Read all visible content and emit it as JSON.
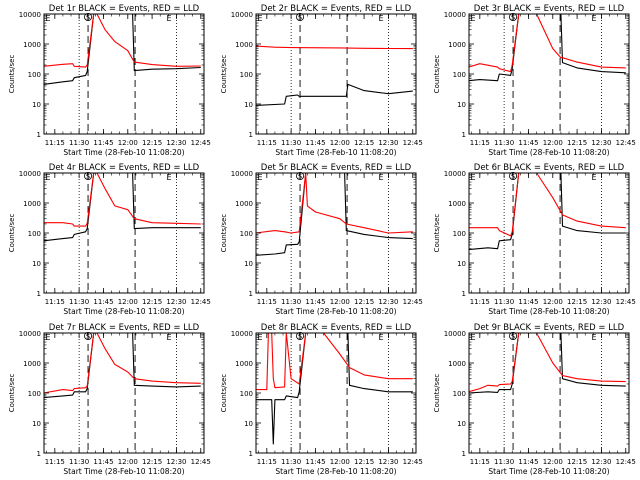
{
  "colors": {
    "events": "#000000",
    "lld": "#ff0000",
    "background": "#ffffff",
    "axes": "#000000"
  },
  "chart_data": [
    {
      "type": "line",
      "title": "Det 1r BLACK = Events, RED = LLD",
      "xlabel": "Start Time (28-Feb-10 11:08:20)",
      "ylabel": "Counts/sec",
      "xticks": [
        "11:15",
        "11:30",
        "11:45",
        "12:00",
        "12:15",
        "12:30",
        "12:45"
      ],
      "yticks": [
        "1",
        "10",
        "100",
        "1000",
        "10000"
      ],
      "ylim": [
        1,
        10000
      ],
      "yscale": "log",
      "xlim": [
        "11:08:20",
        "12:47:00"
      ],
      "markers": [
        "S",
        "E"
      ],
      "grid": false,
      "series": [
        {
          "name": "Events",
          "color": "#000000",
          "x": [
            "11:08",
            "11:20",
            "11:26",
            "11:27",
            "11:34",
            "11:35",
            "11:39",
            "11:40",
            "11:41",
            "11:50",
            "12:03",
            "12:04",
            "12:15",
            "12:30",
            "12:45"
          ],
          "y": [
            45,
            55,
            60,
            75,
            90,
            120,
            10000,
            10000,
            10000,
            10000,
            10000,
            130,
            145,
            150,
            165
          ]
        },
        {
          "name": "LLD",
          "color": "#ff0000",
          "x": [
            "11:08",
            "11:20",
            "11:26",
            "11:27",
            "11:34",
            "11:35",
            "11:39",
            "11:40",
            "11:41",
            "11:46",
            "11:52",
            "12:00",
            "12:04",
            "12:15",
            "12:30",
            "12:45"
          ],
          "y": [
            180,
            210,
            220,
            180,
            170,
            200,
            10000,
            10000,
            10000,
            3000,
            1200,
            600,
            250,
            205,
            180,
            185
          ]
        }
      ]
    },
    {
      "type": "line",
      "title": "Det 2r BLACK = Events, RED = LLD",
      "xlabel": "Start Time (28-Feb-10 11:08:20)",
      "ylabel": "Counts/sec",
      "xticks": [
        "11:15",
        "11:30",
        "11:45",
        "12:00",
        "12:15",
        "12:30",
        "12:45"
      ],
      "yticks": [
        "1",
        "10",
        "100",
        "1000",
        "10000"
      ],
      "ylim": [
        1,
        10000
      ],
      "yscale": "log",
      "xlim": [
        "11:08:20",
        "12:47:00"
      ],
      "markers": [
        "S",
        "E"
      ],
      "grid": false,
      "series": [
        {
          "name": "Events",
          "color": "#000000",
          "x": [
            "11:08",
            "11:26",
            "11:27",
            "11:34",
            "11:35",
            "11:39",
            "12:04",
            "12:05",
            "12:15",
            "12:30",
            "12:45"
          ],
          "y": [
            9,
            10,
            18,
            20,
            18,
            18,
            18,
            45,
            28,
            22,
            27
          ]
        },
        {
          "name": "LLD",
          "color": "#ff0000",
          "x": [
            "11:08",
            "11:20",
            "11:30",
            "11:40",
            "12:00",
            "12:15",
            "12:30",
            "12:45"
          ],
          "y": [
            850,
            780,
            760,
            750,
            740,
            720,
            710,
            700
          ]
        }
      ]
    },
    {
      "type": "line",
      "title": "Det 3r BLACK = Events, RED = LLD",
      "xlabel": "Start Time (28-Feb-10 11:08:20)",
      "ylabel": "Counts/sec",
      "xticks": [
        "11:15",
        "11:30",
        "11:45",
        "12:00",
        "12:15",
        "12:30",
        "12:45"
      ],
      "yticks": [
        "1",
        "10",
        "100",
        "1000",
        "10000"
      ],
      "ylim": [
        1,
        10000
      ],
      "yscale": "log",
      "xlim": [
        "11:08:20",
        "12:47:00"
      ],
      "markers": [
        "S",
        "E"
      ],
      "grid": false,
      "series": [
        {
          "name": "Events",
          "color": "#000000",
          "x": [
            "11:08",
            "11:15",
            "11:26",
            "11:27",
            "11:34",
            "11:35",
            "11:39",
            "11:40",
            "11:41",
            "11:50",
            "12:05",
            "12:06",
            "12:15",
            "12:30",
            "12:45"
          ],
          "y": [
            60,
            65,
            60,
            100,
            90,
            150,
            10000,
            10000,
            10000,
            10000,
            10000,
            240,
            160,
            120,
            110
          ]
        },
        {
          "name": "LLD",
          "color": "#ff0000",
          "x": [
            "11:08",
            "11:15",
            "11:26",
            "11:27",
            "11:34",
            "11:35",
            "11:39",
            "11:40",
            "11:41",
            "11:50",
            "12:00",
            "12:05",
            "12:06",
            "12:15",
            "12:30",
            "12:45"
          ],
          "y": [
            170,
            220,
            170,
            150,
            120,
            200,
            10000,
            10000,
            10000,
            10000,
            700,
            350,
            350,
            250,
            170,
            160
          ]
        }
      ]
    },
    {
      "type": "line",
      "title": "Det 4r BLACK = Events, RED = LLD",
      "xlabel": "Start Time (28-Feb-10 11:08:20)",
      "ylabel": "Counts/sec",
      "xticks": [
        "11:15",
        "11:30",
        "11:45",
        "12:00",
        "12:15",
        "12:30",
        "12:45"
      ],
      "yticks": [
        "1",
        "10",
        "100",
        "1000",
        "10000"
      ],
      "ylim": [
        1,
        10000
      ],
      "yscale": "log",
      "xlim": [
        "11:08:20",
        "12:47:00"
      ],
      "markers": [
        "S",
        "E"
      ],
      "grid": false,
      "series": [
        {
          "name": "Events",
          "color": "#000000",
          "x": [
            "11:08",
            "11:20",
            "11:26",
            "11:27",
            "11:34",
            "11:35",
            "11:39",
            "11:40",
            "11:41",
            "11:50",
            "12:03",
            "12:04",
            "12:15",
            "12:30",
            "12:45"
          ],
          "y": [
            55,
            65,
            70,
            90,
            110,
            140,
            10000,
            10000,
            10000,
            10000,
            10000,
            140,
            150,
            150,
            150
          ]
        },
        {
          "name": "LLD",
          "color": "#ff0000",
          "x": [
            "11:08",
            "11:20",
            "11:26",
            "11:27",
            "11:34",
            "11:35",
            "11:39",
            "11:40",
            "11:41",
            "11:46",
            "11:52",
            "12:00",
            "12:04",
            "12:15",
            "12:30",
            "12:45"
          ],
          "y": [
            220,
            220,
            200,
            170,
            170,
            210,
            10000,
            10000,
            10000,
            3000,
            800,
            600,
            300,
            220,
            210,
            200
          ]
        }
      ]
    },
    {
      "type": "line",
      "title": "Det 5r BLACK = Events, RED = LLD",
      "xlabel": "Start Time (28-Feb-10 11:08:20)",
      "ylabel": "Counts/sec",
      "xticks": [
        "11:15",
        "11:30",
        "11:45",
        "12:00",
        "12:15",
        "12:30",
        "12:45"
      ],
      "yticks": [
        "1",
        "10",
        "100",
        "1000",
        "10000"
      ],
      "ylim": [
        1,
        10000
      ],
      "yscale": "log",
      "xlim": [
        "11:08:20",
        "12:47:00"
      ],
      "markers": [
        "S",
        "E"
      ],
      "grid": false,
      "series": [
        {
          "name": "Events",
          "color": "#000000",
          "x": [
            "11:08",
            "11:20",
            "11:26",
            "11:27",
            "11:34",
            "11:35",
            "11:39",
            "11:40",
            "11:41",
            "11:50",
            "12:03",
            "12:04",
            "12:15",
            "12:30",
            "12:45"
          ],
          "y": [
            18,
            20,
            22,
            40,
            42,
            50,
            10000,
            10000,
            10000,
            10000,
            10000,
            120,
            90,
            70,
            65
          ]
        },
        {
          "name": "LLD",
          "color": "#ff0000",
          "x": [
            "11:08",
            "11:20",
            "11:26",
            "11:30",
            "11:35",
            "11:39",
            "11:40",
            "11:45",
            "12:00",
            "12:04",
            "12:15",
            "12:30",
            "12:45"
          ],
          "y": [
            100,
            120,
            110,
            100,
            110,
            10000,
            800,
            500,
            300,
            200,
            150,
            100,
            110
          ]
        }
      ]
    },
    {
      "type": "line",
      "title": "Det 6r BLACK = Events, RED = LLD",
      "xlabel": "Start Time (28-Feb-10 11:08:20)",
      "ylabel": "Counts/sec",
      "xticks": [
        "11:15",
        "11:30",
        "11:45",
        "12:00",
        "12:15",
        "12:30",
        "12:45"
      ],
      "yticks": [
        "1",
        "10",
        "100",
        "1000",
        "10000"
      ],
      "ylim": [
        1,
        10000
      ],
      "yscale": "log",
      "xlim": [
        "11:08:20",
        "12:47:00"
      ],
      "markers": [
        "S",
        "E"
      ],
      "grid": false,
      "series": [
        {
          "name": "Events",
          "color": "#000000",
          "x": [
            "11:08",
            "11:20",
            "11:26",
            "11:27",
            "11:34",
            "11:35",
            "11:39",
            "11:40",
            "11:41",
            "11:50",
            "12:05",
            "12:06",
            "12:15",
            "12:30",
            "12:45"
          ],
          "y": [
            28,
            32,
            30,
            55,
            60,
            90,
            10000,
            10000,
            10000,
            10000,
            10000,
            170,
            120,
            100,
            100
          ]
        },
        {
          "name": "LLD",
          "color": "#ff0000",
          "x": [
            "11:08",
            "11:20",
            "11:26",
            "11:27",
            "11:34",
            "11:35",
            "11:39",
            "11:40",
            "11:41",
            "11:50",
            "12:00",
            "12:06",
            "12:15",
            "12:30",
            "12:45"
          ],
          "y": [
            150,
            150,
            150,
            120,
            80,
            110,
            10000,
            10000,
            10000,
            10000,
            1500,
            400,
            250,
            170,
            150
          ]
        }
      ]
    },
    {
      "type": "line",
      "title": "Det 7r BLACK = Events, RED = LLD",
      "xlabel": "Start Time (28-Feb-10 11:08:20)",
      "ylabel": "Counts/sec",
      "xticks": [
        "11:15",
        "11:30",
        "11:45",
        "12:00",
        "12:15",
        "12:30",
        "12:45"
      ],
      "yticks": [
        "1",
        "10",
        "100",
        "1000",
        "10000"
      ],
      "ylim": [
        1,
        10000
      ],
      "yscale": "log",
      "xlim": [
        "11:08:20",
        "12:47:00"
      ],
      "markers": [
        "S",
        "E"
      ],
      "grid": false,
      "series": [
        {
          "name": "Events",
          "color": "#000000",
          "x": [
            "11:08",
            "11:20",
            "11:26",
            "11:27",
            "11:34",
            "11:35",
            "11:39",
            "11:40",
            "11:41",
            "11:50",
            "12:03",
            "12:04",
            "12:15",
            "12:30",
            "12:45"
          ],
          "y": [
            70,
            80,
            85,
            110,
            110,
            140,
            10000,
            10000,
            10000,
            10000,
            10000,
            180,
            170,
            160,
            170
          ]
        },
        {
          "name": "LLD",
          "color": "#ff0000",
          "x": [
            "11:08",
            "11:20",
            "11:26",
            "11:27",
            "11:34",
            "11:35",
            "11:39",
            "11:40",
            "11:41",
            "11:46",
            "11:52",
            "12:00",
            "12:04",
            "12:15",
            "12:30",
            "12:45"
          ],
          "y": [
            100,
            130,
            120,
            140,
            150,
            170,
            10000,
            10000,
            10000,
            3000,
            900,
            500,
            300,
            250,
            220,
            210
          ]
        }
      ]
    },
    {
      "type": "line",
      "title": "Det 8r BLACK = Events, RED = LLD",
      "xlabel": "Start Time (28-Feb-10 11:08:20)",
      "ylabel": "Counts/sec",
      "xticks": [
        "11:15",
        "11:30",
        "11:45",
        "12:00",
        "12:15",
        "12:30",
        "12:45"
      ],
      "yticks": [
        "1",
        "10",
        "100",
        "1000",
        "10000"
      ],
      "ylim": [
        1,
        10000
      ],
      "yscale": "log",
      "xlim": [
        "11:08:20",
        "12:47:00"
      ],
      "markers": [
        "S",
        "E"
      ],
      "grid": false,
      "series": [
        {
          "name": "Events",
          "color": "#000000",
          "x": [
            "11:08",
            "11:18",
            "11:19",
            "11:20",
            "11:26",
            "11:27",
            "11:34",
            "11:35",
            "11:39",
            "11:40",
            "11:41",
            "11:50",
            "12:05",
            "12:06",
            "12:15",
            "12:30",
            "12:45"
          ],
          "y": [
            60,
            60,
            2,
            60,
            60,
            80,
            70,
            110,
            10000,
            10000,
            10000,
            10000,
            10000,
            180,
            140,
            110,
            110
          ]
        },
        {
          "name": "LLD",
          "color": "#ff0000",
          "x": [
            "11:08",
            "11:15",
            "11:16",
            "11:18",
            "11:19",
            "11:20",
            "11:26",
            "11:27",
            "11:30",
            "11:35",
            "11:39",
            "11:40",
            "11:41",
            "11:50",
            "12:00",
            "12:06",
            "12:15",
            "12:30",
            "12:45"
          ],
          "y": [
            130,
            130,
            10000,
            10000,
            300,
            150,
            160,
            10000,
            300,
            200,
            10000,
            10000,
            10000,
            10000,
            2000,
            700,
            400,
            300,
            300
          ]
        }
      ]
    },
    {
      "type": "line",
      "title": "Det 9r BLACK = Events, RED = LLD",
      "xlabel": "Start Time (28-Feb-10 11:08:20)",
      "ylabel": "Counts/sec",
      "xticks": [
        "11:15",
        "11:30",
        "11:45",
        "12:00",
        "12:15",
        "12:30",
        "12:45"
      ],
      "yticks": [
        "1",
        "10",
        "100",
        "1000",
        "10000"
      ],
      "ylim": [
        1,
        10000
      ],
      "yscale": "log",
      "xlim": [
        "11:08:20",
        "12:47:00"
      ],
      "markers": [
        "S",
        "E"
      ],
      "grid": false,
      "series": [
        {
          "name": "Events",
          "color": "#000000",
          "x": [
            "11:08",
            "11:20",
            "11:26",
            "11:27",
            "11:34",
            "11:35",
            "11:39",
            "11:40",
            "11:41",
            "11:50",
            "12:05",
            "12:06",
            "12:15",
            "12:30",
            "12:45"
          ],
          "y": [
            100,
            110,
            105,
            130,
            130,
            200,
            10000,
            10000,
            10000,
            10000,
            10000,
            300,
            220,
            180,
            170
          ]
        },
        {
          "name": "LLD",
          "color": "#ff0000",
          "x": [
            "11:08",
            "11:15",
            "11:20",
            "11:26",
            "11:27",
            "11:34",
            "11:35",
            "11:39",
            "11:40",
            "11:41",
            "11:50",
            "12:00",
            "12:06",
            "12:15",
            "12:30",
            "12:45"
          ],
          "y": [
            110,
            140,
            180,
            170,
            190,
            200,
            240,
            10000,
            10000,
            10000,
            10000,
            1000,
            380,
            300,
            250,
            240
          ]
        }
      ]
    }
  ]
}
